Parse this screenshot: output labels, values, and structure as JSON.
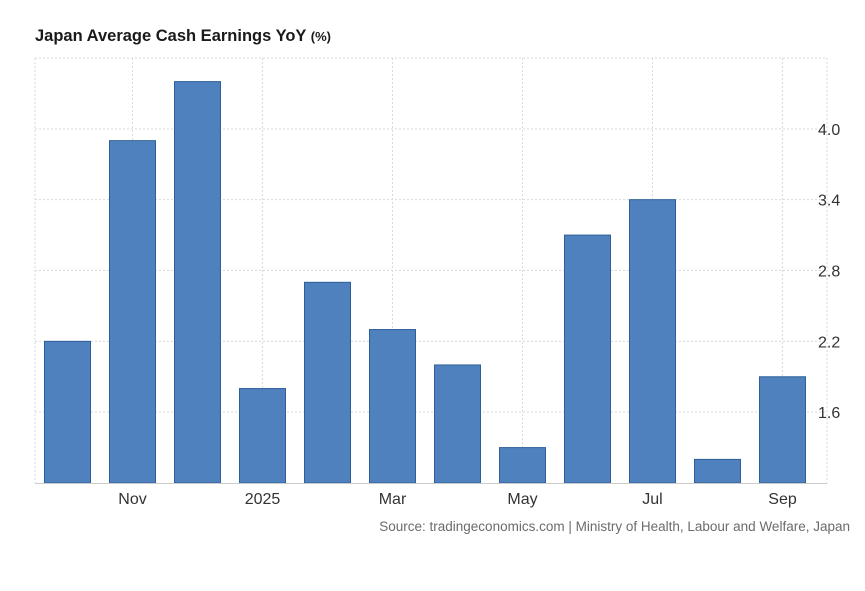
{
  "chart_data": {
    "type": "bar",
    "title": "Japan Average Cash Earnings YoY",
    "title_unit": "(%)",
    "source": "Source: tradingeconomics.com | Ministry of Health, Labour and Welfare, Japan",
    "categories": [
      "2024-10",
      "2024-11",
      "2024-12",
      "2025-01",
      "2025-02",
      "2025-03",
      "2025-04",
      "2025-05",
      "2025-06",
      "2025-07",
      "2025-08",
      "2025-09"
    ],
    "x_tick_labels": [
      {
        "category": "2024-11",
        "label": "Nov"
      },
      {
        "category": "2025-01",
        "label": "2025"
      },
      {
        "category": "2025-03",
        "label": "Mar"
      },
      {
        "category": "2025-05",
        "label": "May"
      },
      {
        "category": "2025-07",
        "label": "Jul"
      },
      {
        "category": "2025-09",
        "label": "Sep"
      }
    ],
    "values": [
      2.2,
      3.9,
      4.4,
      1.8,
      2.7,
      2.3,
      2.0,
      1.3,
      3.1,
      3.4,
      1.2,
      1.9
    ],
    "ylim": [
      1.0,
      4.6
    ],
    "y_ticks": [
      1.6,
      2.2,
      2.8,
      3.4,
      4.0
    ],
    "y_tick_labels": [
      "1.6",
      "2.2",
      "2.8",
      "3.4",
      "4.0"
    ],
    "y_axis_side": "right",
    "grid": true,
    "bar_color": "#4e81bd",
    "bar_edge_color": "#2f5f9a"
  }
}
